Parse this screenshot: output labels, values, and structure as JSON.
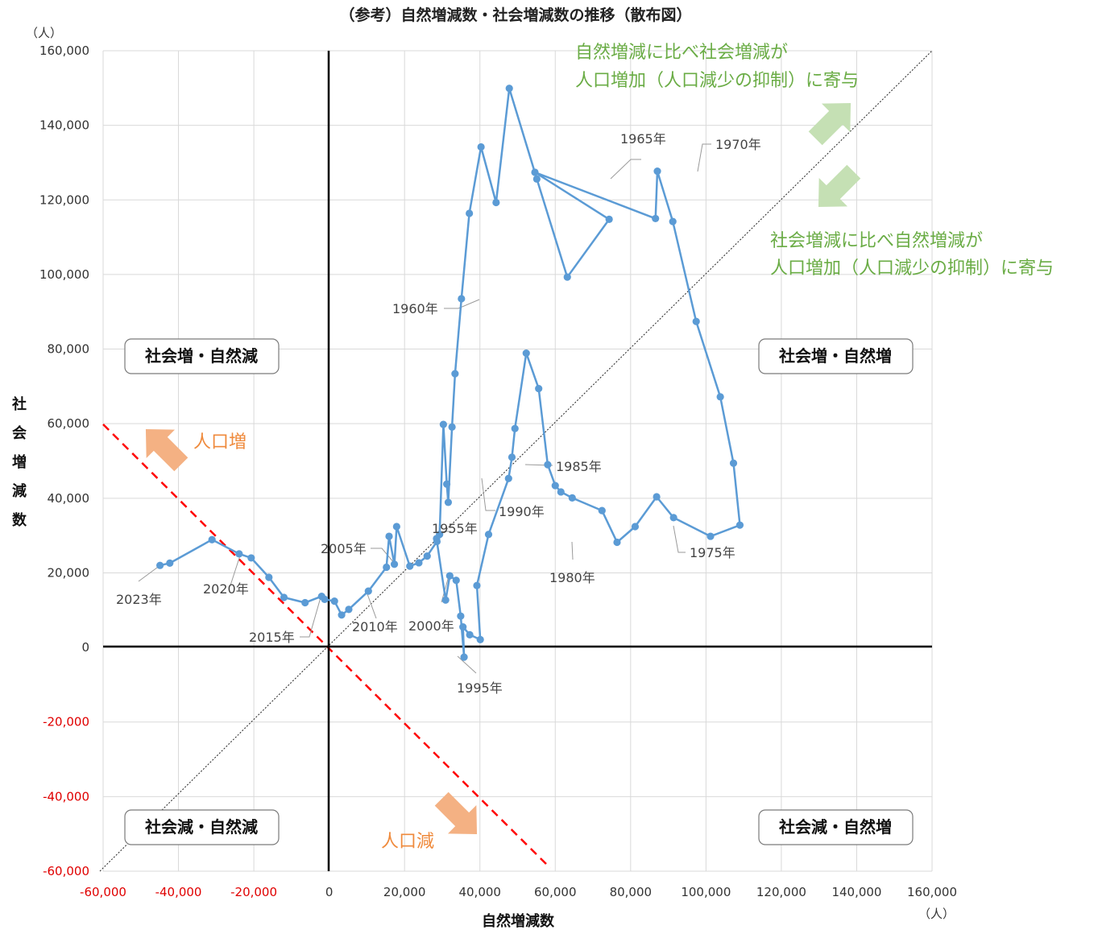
{
  "chart_data": {
    "type": "scatter",
    "title": "（参考）自然増減数・社会増減数の推移（散布図）",
    "xlabel": "自然増減数",
    "ylabel": "社会増減数",
    "x_unit": "（人）",
    "y_unit": "（人）",
    "xlim": [
      -60000,
      160000
    ],
    "ylim": [
      -60000,
      160000
    ],
    "x_ticks": [
      "-60,000",
      "-40,000",
      "-20,000",
      "0",
      "20,000",
      "40,000",
      "60,000",
      "80,000",
      "100,000",
      "120,000",
      "140,000",
      "160,000"
    ],
    "y_ticks": [
      "-60,000",
      "-40,000",
      "-20,000",
      "0",
      "20,000",
      "40,000",
      "60,000",
      "80,000",
      "100,000",
      "120,000",
      "140,000",
      "160,000"
    ],
    "grid": true,
    "negative_tick_color": "#e00000",
    "series": [
      {
        "color": "#5b9bd5",
        "x": [
          28500,
          29300,
          30300,
          31200,
          31600,
          32600,
          33400,
          35100,
          37200,
          40300,
          44300,
          47800,
          55100,
          63200,
          74300,
          54600,
          86600,
          87100,
          91200,
          97400,
          103800,
          107300,
          109000,
          101200,
          91400,
          86900,
          81200,
          76400,
          72400,
          64500,
          61500,
          60000,
          58000,
          55600,
          52300,
          49300,
          48500,
          47600,
          42300,
          39200,
          40100,
          37300,
          35500,
          35800,
          34900,
          33700,
          32000,
          30900,
          28600,
          26000,
          23800,
          21400,
          17900,
          17300,
          15900,
          15200,
          10400,
          5200,
          3300,
          1400,
          -1200,
          -2000,
          -6400,
          -12000,
          -16000,
          -20700,
          -23900,
          -31100,
          -42300,
          -44900
        ],
        "y": [
          29200,
          30300,
          59800,
          43800,
          38900,
          59100,
          73400,
          93500,
          116400,
          134200,
          119300,
          149900,
          125600,
          99300,
          114800,
          127400,
          115000,
          127700,
          114200,
          87400,
          67200,
          49400,
          32800,
          29800,
          34800,
          40400,
          32400,
          28200,
          36700,
          40100,
          41700,
          43400,
          49000,
          69400,
          78900,
          58700,
          51000,
          45300,
          30300,
          16600,
          2100,
          3400,
          5500,
          -2600,
          8400,
          18000,
          19200,
          12700,
          28400,
          24500,
          22700,
          21800,
          32400,
          22300,
          29800,
          21500,
          15100,
          10200,
          8700,
          12400,
          12900,
          13700,
          12000,
          13400,
          18800,
          24000,
          25100,
          28900,
          22600,
          22000
        ]
      }
    ],
    "year_annotations": [
      "1955年",
      "1960年",
      "1965年",
      "1970年",
      "1975年",
      "1980年",
      "1985年",
      "1990年",
      "1995年",
      "2000年",
      "2005年",
      "2010年",
      "2015年",
      "2020年",
      "2023年"
    ],
    "quadrant_labels": {
      "top_left": "社会増・自然減",
      "top_right": "社会増・自然増",
      "bottom_left": "社会減・自然減",
      "bottom_right": "社会減・自然増"
    },
    "diagonal_notes": {
      "upper": [
        "自然増減に比べ社会増減が",
        "人口増加（人口減少の抑制）に寄与"
      ],
      "lower": [
        "社会増減に比べ自然増減が",
        "人口増加（人口減少の抑制）に寄与"
      ]
    },
    "population_notes": {
      "increase": "人口増",
      "decrease": "人口減"
    },
    "colors": {
      "series": "#5b9bd5",
      "population_line": "#ff0000",
      "diagonal": "#222222",
      "green_text": "#6aac45",
      "green_arrow": "#c5e0b4",
      "orange_text": "#ef8a3c",
      "orange_arrow": "#f4b183"
    }
  }
}
